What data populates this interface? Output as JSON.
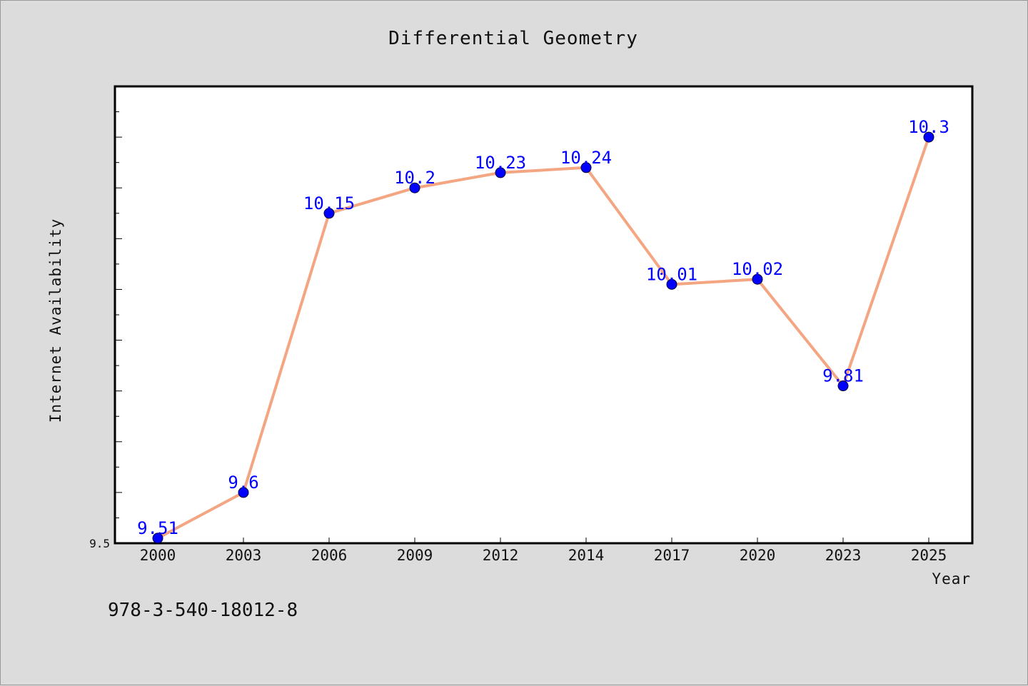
{
  "chart_data": {
    "type": "line",
    "title": "Differential Geometry",
    "xlabel": "Year",
    "ylabel": "Internet Availability",
    "categories": [
      "2000",
      "2003",
      "2006",
      "2009",
      "2012",
      "2014",
      "2017",
      "2020",
      "2023",
      "2025"
    ],
    "series": [
      {
        "values": [
          9.51,
          9.6,
          10.15,
          10.2,
          10.23,
          10.24,
          10.01,
          10.02,
          9.81,
          10.3
        ],
        "data_labels": [
          "9.51",
          "9.6",
          "10.15",
          "10.2",
          "10.23",
          "10.24",
          "10.01",
          "10.02",
          "9.81",
          "10.3"
        ],
        "line_color": "#f4a582",
        "marker_color": "#0000ff"
      }
    ],
    "ylim": [
      9.5,
      10.4
    ],
    "y_tick_labels": [
      "9.5"
    ],
    "grid": false,
    "legend": "none",
    "background": "#dcdcdc",
    "plot_background": "#ffffff",
    "label_color": "#0000ff"
  },
  "footnote": "978-3-540-18012-8"
}
